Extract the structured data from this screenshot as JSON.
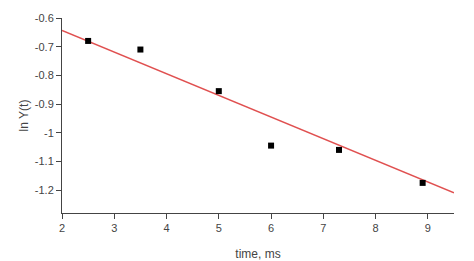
{
  "chart_data": {
    "type": "scatter",
    "xlabel": "time, ms",
    "ylabel": "ln Y(t)",
    "series": [
      {
        "type": "scatter",
        "color": "black",
        "marker": "square",
        "x": [
          2.5,
          3.5,
          5.0,
          6.0,
          7.3,
          8.9
        ],
        "values": [
          -0.68,
          -0.71,
          -0.855,
          -1.045,
          -1.06,
          -1.175
        ]
      },
      {
        "type": "line",
        "color": "#e05050",
        "line_style": "solid",
        "x": [
          2.0,
          9.5
        ],
        "values": [
          -0.643,
          -1.20925
        ]
      }
    ],
    "xlim": [
      2.0,
      9.5
    ],
    "ylim": [
      -1.28,
      -0.6
    ],
    "xticks": [
      2,
      3,
      4,
      5,
      6,
      7,
      8,
      9
    ],
    "yticks": [
      -1.2,
      -1.1,
      -1.0,
      -0.9,
      -0.8,
      -0.7,
      -0.6
    ],
    "grid": false
  }
}
